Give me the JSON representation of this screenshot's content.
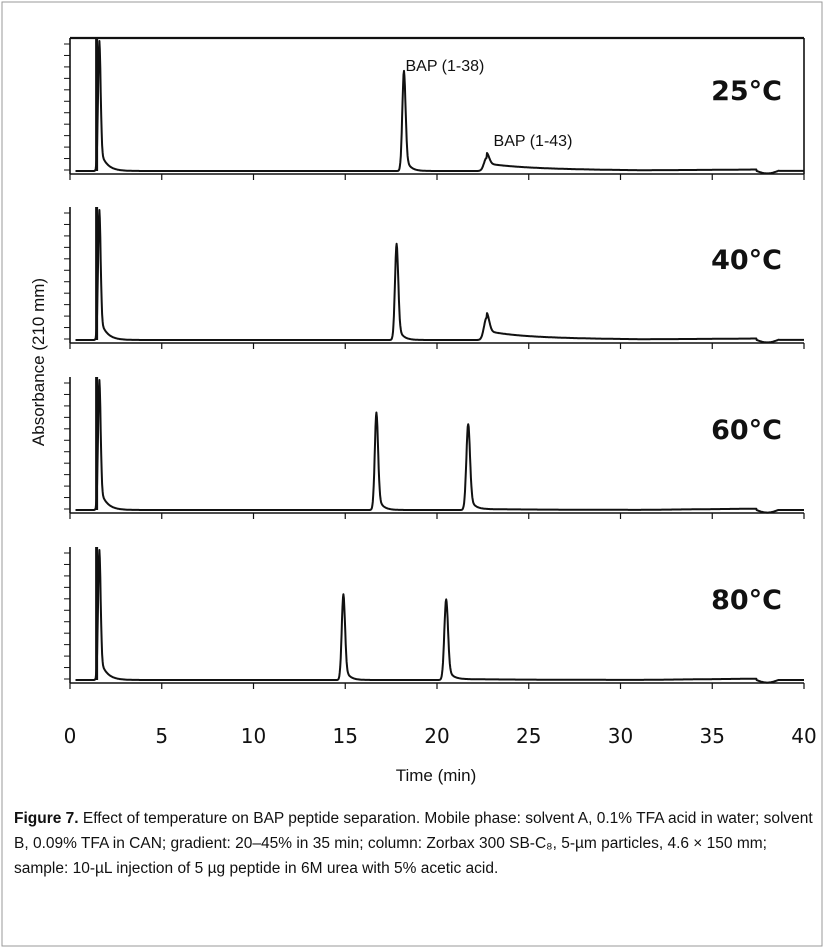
{
  "chart_data": {
    "type": "line",
    "xlabel": "Time (min)",
    "ylabel": "Absorbance (210 mm)",
    "xlim": [
      0,
      40
    ],
    "x_ticks": [
      "0",
      "5",
      "10",
      "15",
      "20",
      "25",
      "30",
      "35",
      "40"
    ],
    "grid": false,
    "legend": "none",
    "line_color": "#111111",
    "panels": [
      {
        "name": "25°C",
        "peaks": [
          {
            "t": 1.6,
            "height": 1.0,
            "width": 0.07
          },
          {
            "t": 18.2,
            "height": 0.77,
            "width": 0.09
          },
          {
            "t": 22.7,
            "height": 0.1,
            "width": 0.14
          }
        ],
        "annotations": [
          {
            "text": "BAP (1-38)",
            "t": 18.5
          },
          {
            "text": "BAP (1-43)",
            "t": 23.3
          }
        ]
      },
      {
        "name": "40°C",
        "peaks": [
          {
            "t": 1.6,
            "height": 1.0,
            "width": 0.07
          },
          {
            "t": 17.8,
            "height": 0.74,
            "width": 0.09
          },
          {
            "t": 22.7,
            "height": 0.17,
            "width": 0.14
          }
        ],
        "annotations": []
      },
      {
        "name": "60°C",
        "peaks": [
          {
            "t": 1.6,
            "height": 1.0,
            "width": 0.07
          },
          {
            "t": 16.7,
            "height": 0.75,
            "width": 0.09
          },
          {
            "t": 21.7,
            "height": 0.66,
            "width": 0.1
          }
        ],
        "annotations": []
      },
      {
        "name": "80°C",
        "peaks": [
          {
            "t": 1.6,
            "height": 1.0,
            "width": 0.07
          },
          {
            "t": 14.9,
            "height": 0.66,
            "width": 0.09
          },
          {
            "t": 20.5,
            "height": 0.62,
            "width": 0.1
          }
        ],
        "annotations": []
      }
    ]
  },
  "caption": {
    "figure_label": "Figure 7.",
    "text": "Effect of temperature on BAP peptide separation. Mobile phase: solvent A, 0.1% TFA acid in water; solvent B, 0.09% TFA in CAN; gradient: 20–45% in 35 min; column: Zorbax 300 SB-C₈, 5-µm particles, 4.6 × 150 mm; sample: 10-µL injection of 5 µg peptide in 6M urea with 5% acetic acid."
  }
}
